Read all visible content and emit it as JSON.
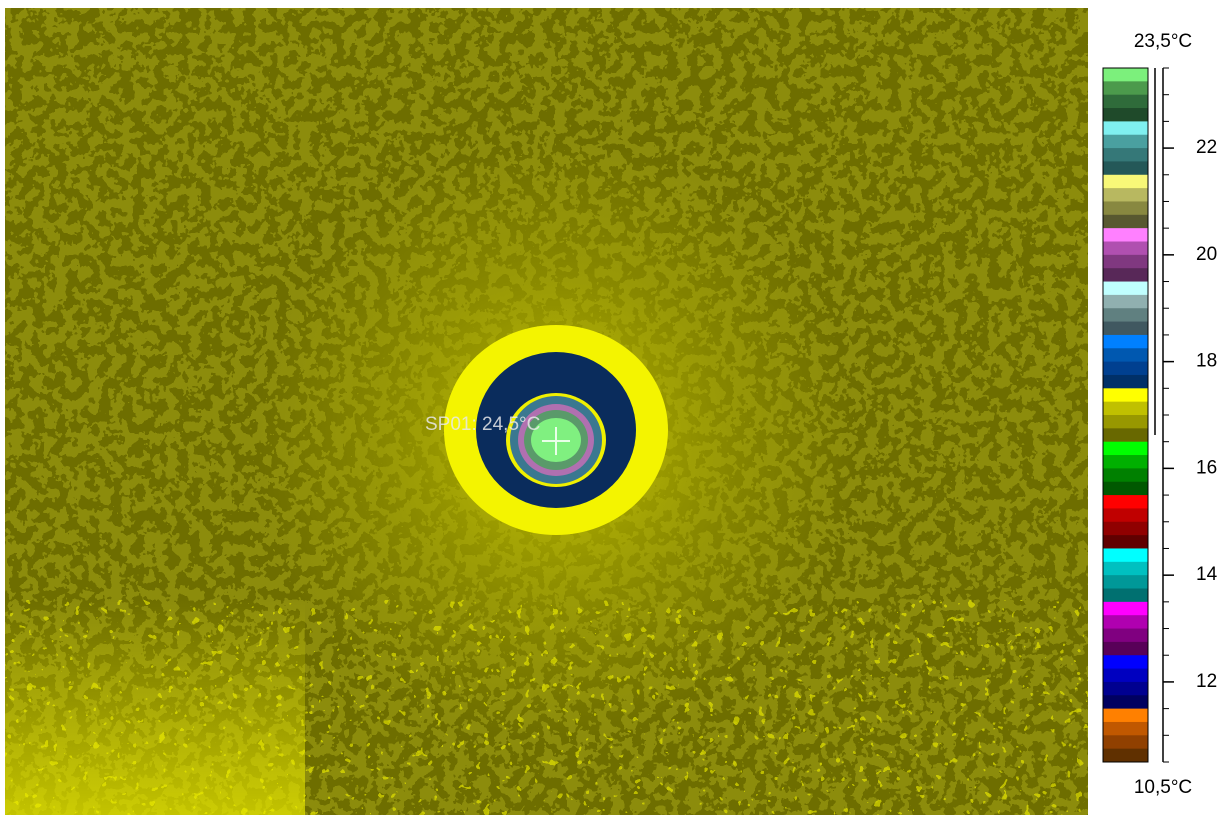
{
  "scale": {
    "max_label": "23,5°C",
    "min_label": "10,5°C",
    "min": 10.5,
    "max": 23.5,
    "ticks": [
      12,
      14,
      16,
      18,
      20,
      22
    ],
    "palette": [
      "#7cf07c",
      "#4c9a4c",
      "#2f6b3a",
      "#1f4a2a",
      "#7ff0f0",
      "#4aa0a0",
      "#357878",
      "#245858",
      "#f8f878",
      "#b8b860",
      "#888840",
      "#585830",
      "#ff80ff",
      "#b050b0",
      "#803880",
      "#582858",
      "#c0ffff",
      "#90b0b0",
      "#608080",
      "#405860",
      "#0080ff",
      "#0058b0",
      "#004090",
      "#003068",
      "#ffff00",
      "#c0c000",
      "#989800",
      "#686800",
      "#00ff00",
      "#00b000",
      "#008000",
      "#005800",
      "#ff0000",
      "#c00000",
      "#900000",
      "#600000",
      "#00ffff",
      "#00c0c0",
      "#009898",
      "#007070",
      "#ff00ff",
      "#b000b0",
      "#800080",
      "#580058",
      "#0000ff",
      "#0000c0",
      "#000090",
      "#000060",
      "#ff8000",
      "#c05800",
      "#904000",
      "#603000"
    ]
  },
  "spot": {
    "label": "SP01: 24,5°C"
  }
}
